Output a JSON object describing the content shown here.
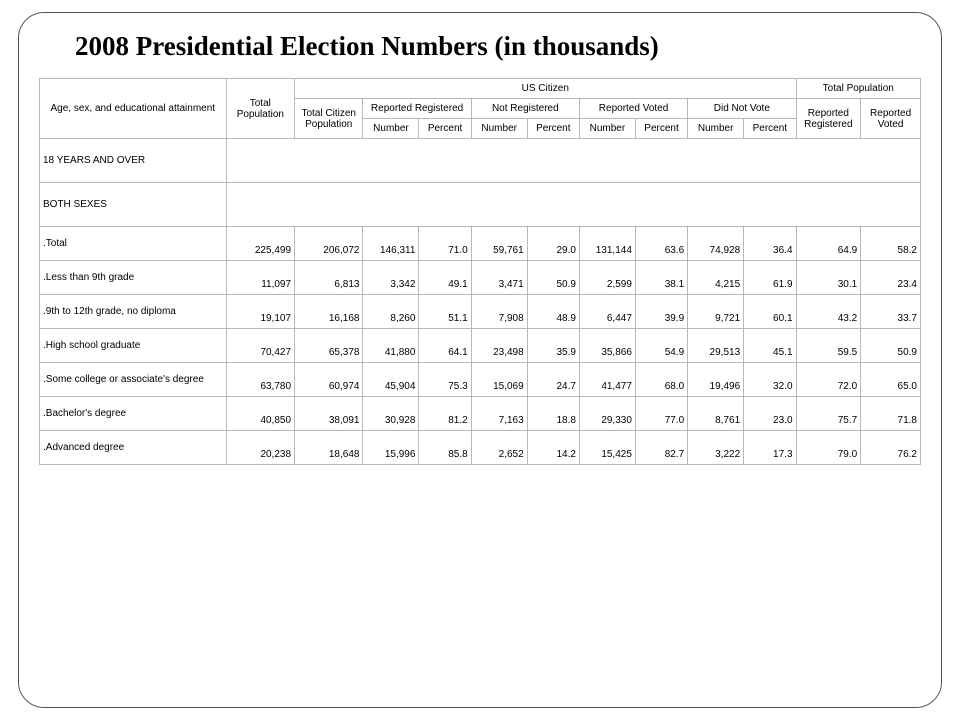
{
  "title": "2008 Presidential Election Numbers (in thousands)",
  "headers": {
    "row_label": "Age, sex, and educational attainment",
    "total_pop": "Total Population",
    "us_citizen": "US Citizen",
    "total_pop_pct": "Total Population",
    "total_cit_pop": "Total Citizen Population",
    "rep_reg": "Reported Registered",
    "not_reg": "Not Registered",
    "rep_voted": "Reported Voted",
    "did_not_vote": "Did Not Vote",
    "rep_reg_pct": "Reported Registered",
    "rep_voted_pct": "Reported Voted",
    "number": "Number",
    "percent": "Percent"
  },
  "section1": "18 YEARS AND OVER",
  "section2": "BOTH SEXES",
  "rows": [
    {
      "label": ".Total",
      "c": [
        "225,499",
        "206,072",
        "146,311",
        "71.0",
        "59,761",
        "29.0",
        "131,144",
        "63.6",
        "74,928",
        "36.4",
        "64.9",
        "58.2"
      ]
    },
    {
      "label": ".Less than 9th grade",
      "c": [
        "11,097",
        "6,813",
        "3,342",
        "49.1",
        "3,471",
        "50.9",
        "2,599",
        "38.1",
        "4,215",
        "61.9",
        "30.1",
        "23.4"
      ]
    },
    {
      "label": ".9th to 12th grade, no diploma",
      "c": [
        "19,107",
        "16,168",
        "8,260",
        "51.1",
        "7,908",
        "48.9",
        "6,447",
        "39.9",
        "9,721",
        "60.1",
        "43.2",
        "33.7"
      ]
    },
    {
      "label": ".High school graduate",
      "c": [
        "70,427",
        "65,378",
        "41,880",
        "64.1",
        "23,498",
        "35.9",
        "35,866",
        "54.9",
        "29,513",
        "45.1",
        "59.5",
        "50.9"
      ]
    },
    {
      "label": ".Some college or associate's degree",
      "c": [
        "63,780",
        "60,974",
        "45,904",
        "75.3",
        "15,069",
        "24.7",
        "41,477",
        "68.0",
        "19,496",
        "32.0",
        "72.0",
        "65.0"
      ]
    },
    {
      "label": ".Bachelor's degree",
      "c": [
        "40,850",
        "38,091",
        "30,928",
        "81.2",
        "7,163",
        "18.8",
        "29,330",
        "77.0",
        "8,761",
        "23.0",
        "75.7",
        "71.8"
      ]
    },
    {
      "label": ".Advanced degree",
      "c": [
        "20,238",
        "18,648",
        "15,996",
        "85.8",
        "2,652",
        "14.2",
        "15,425",
        "82.7",
        "3,222",
        "17.3",
        "79.0",
        "76.2"
      ]
    }
  ]
}
